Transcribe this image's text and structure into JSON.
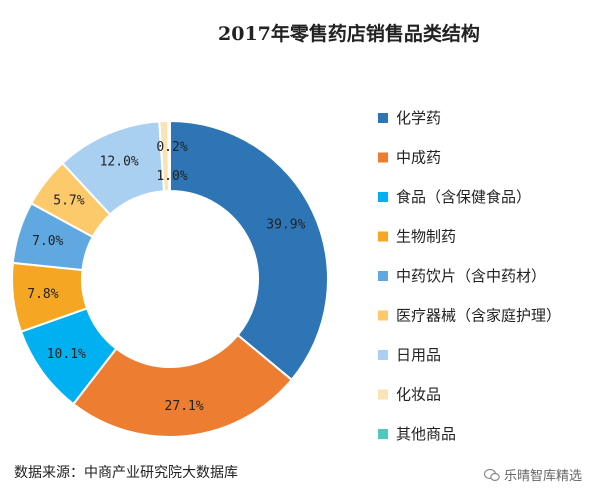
{
  "chart_data": {
    "type": "pie",
    "title": "2017年零售药店销售品类结构",
    "slices": [
      {
        "name": "化学药",
        "value": 39.9,
        "label": "39.9%",
        "color": "#2e75b6"
      },
      {
        "name": "中成药",
        "value": 27.1,
        "label": "27.1%",
        "color": "#ed7d31"
      },
      {
        "name": "食品（含保健食品）",
        "value": 10.1,
        "label": "10.1%",
        "color": "#00b0f0"
      },
      {
        "name": "生物制药",
        "value": 7.8,
        "label": "7.8%",
        "color": "#f5a623"
      },
      {
        "name": "中药饮片（含中药材）",
        "value": 7.0,
        "label": "7.0%",
        "color": "#5fa8e0"
      },
      {
        "name": "医疗器械（含家庭护理）",
        "value": 5.7,
        "label": "5.7%",
        "color": "#fcc96b"
      },
      {
        "name": "日用品",
        "value": 12.0,
        "label": "12.0%",
        "color": "#a9cff1"
      },
      {
        "name": "化妆品",
        "value": 1.0,
        "label": "1.0%",
        "color": "#fae3b5"
      },
      {
        "name": "其他商品",
        "value": 0.2,
        "label": "0.2%",
        "color": "#4fc9c0"
      }
    ],
    "legend_position": "right",
    "donut": true
  },
  "source": "数据来源：中商产业研究院大数据库",
  "watermark": "乐晴智库精选"
}
